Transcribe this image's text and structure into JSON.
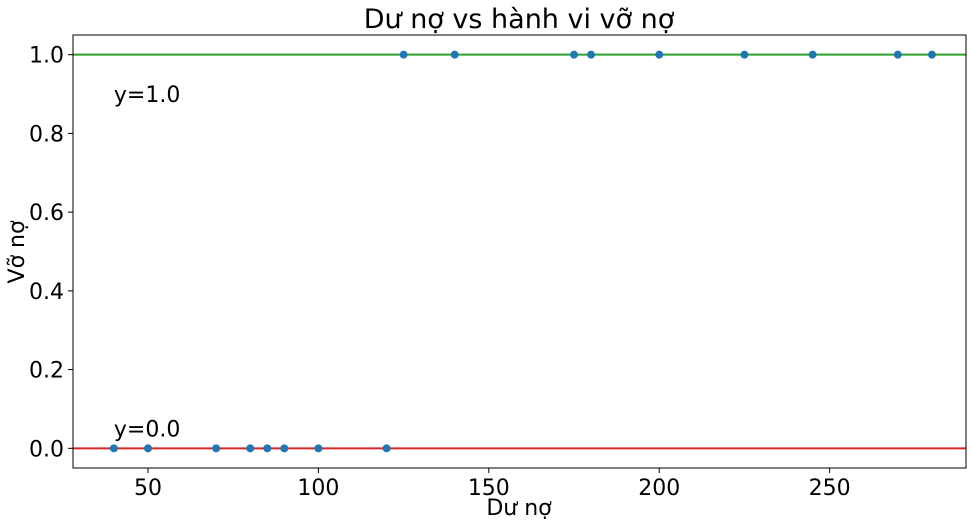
{
  "chart_data": {
    "type": "scatter",
    "title": "Dư nợ vs hành vi vỡ nợ",
    "xlabel": "Dư nợ",
    "ylabel": "Vỡ nợ",
    "xlim": [
      28,
      290
    ],
    "ylim": [
      -0.05,
      1.05
    ],
    "xticks": [
      50,
      100,
      150,
      200,
      250
    ],
    "xtick_labels": [
      "50",
      "100",
      "150",
      "200",
      "250"
    ],
    "yticks": [
      0.0,
      0.2,
      0.4,
      0.6,
      0.8,
      1.0
    ],
    "ytick_labels": [
      "0.0",
      "0.2",
      "0.4",
      "0.6",
      "0.8",
      "1.0"
    ],
    "grid": false,
    "marker_color": "#1f77b4",
    "series": [
      {
        "x": [
          40,
          50,
          70,
          80,
          85,
          90,
          100,
          120,
          125,
          140,
          175,
          180,
          200,
          225,
          245,
          270,
          280
        ],
        "y": [
          0,
          0,
          0,
          0,
          0,
          0,
          0,
          0,
          1,
          1,
          1,
          1,
          1,
          1,
          1,
          1,
          1
        ]
      }
    ],
    "reference_lines": [
      {
        "y": 1.0,
        "color": "#2ca02c"
      },
      {
        "y": 0.0,
        "color": "#d62728"
      }
    ],
    "annotations": [
      {
        "text": "y=1.0",
        "x": 40,
        "y": 0.9
      },
      {
        "text": "y=0.0",
        "x": 40,
        "y": 0.05
      }
    ]
  }
}
